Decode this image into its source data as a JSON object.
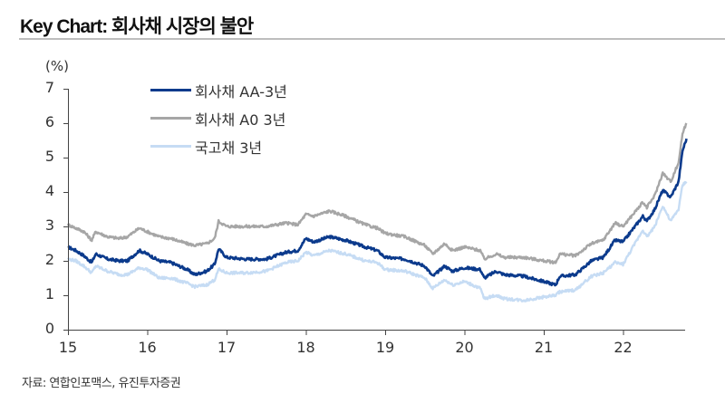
{
  "title": "Key Chart: 회사채 시장의 불안",
  "source": "자료: 연합인포맥스, 유진투자증권",
  "colors": {
    "aa": "#0b3a8c",
    "a0": "#a6a6a6",
    "ktb": "#c6dcf4",
    "axis": "#444444",
    "title_rule": "#bdbdbd"
  },
  "chart_data": {
    "type": "line",
    "title": "Key Chart: 회사채 시장의 불안",
    "xlabel": "",
    "ylabel": "(%)",
    "ylim": [
      0,
      7
    ],
    "xlim": [
      15,
      22.8
    ],
    "grid": false,
    "legend_position": "upper-left",
    "x_ticks": [
      "15",
      "16",
      "17",
      "18",
      "19",
      "20",
      "21",
      "22"
    ],
    "y_ticks": [
      "0",
      "1",
      "2",
      "3",
      "4",
      "5",
      "6",
      "7"
    ],
    "x": [
      15.0,
      15.1,
      15.2,
      15.3,
      15.35,
      15.5,
      15.65,
      15.75,
      15.9,
      16.0,
      16.15,
      16.3,
      16.5,
      16.6,
      16.75,
      16.85,
      16.9,
      17.0,
      17.25,
      17.5,
      17.75,
      17.9,
      18.0,
      18.1,
      18.3,
      18.5,
      18.75,
      18.9,
      19.0,
      19.25,
      19.5,
      19.6,
      19.75,
      19.85,
      20.0,
      20.2,
      20.25,
      20.4,
      20.5,
      20.75,
      21.0,
      21.15,
      21.2,
      21.4,
      21.6,
      21.75,
      21.9,
      22.0,
      22.25,
      22.3,
      22.4,
      22.5,
      22.6,
      22.7,
      22.75,
      22.8
    ],
    "series": [
      {
        "name": "회사채 AA-3년",
        "values": [
          2.4,
          2.3,
          2.15,
          1.95,
          2.2,
          2.05,
          2.0,
          2.0,
          2.3,
          2.2,
          2.0,
          1.95,
          1.75,
          1.6,
          1.7,
          1.9,
          2.35,
          2.1,
          2.05,
          2.05,
          2.25,
          2.3,
          2.65,
          2.55,
          2.7,
          2.6,
          2.4,
          2.3,
          2.1,
          2.05,
          1.85,
          1.55,
          1.85,
          1.7,
          1.8,
          1.75,
          1.5,
          1.7,
          1.6,
          1.55,
          1.4,
          1.3,
          1.55,
          1.6,
          2.0,
          2.1,
          2.6,
          2.55,
          3.3,
          3.15,
          3.5,
          4.05,
          3.85,
          4.3,
          5.2,
          5.55
        ]
      },
      {
        "name": "회사채 A0 3년",
        "values": [
          3.05,
          2.95,
          2.85,
          2.6,
          2.85,
          2.7,
          2.65,
          2.7,
          2.95,
          2.85,
          2.7,
          2.65,
          2.5,
          2.45,
          2.5,
          2.65,
          3.15,
          3.0,
          3.0,
          3.0,
          3.1,
          3.05,
          3.35,
          3.3,
          3.45,
          3.3,
          3.05,
          2.95,
          2.8,
          2.7,
          2.45,
          2.2,
          2.5,
          2.3,
          2.4,
          2.3,
          2.05,
          2.2,
          2.1,
          2.1,
          2.0,
          1.95,
          2.2,
          2.15,
          2.5,
          2.6,
          3.1,
          3.0,
          3.7,
          3.55,
          3.9,
          4.55,
          4.3,
          4.85,
          5.7,
          6.0
        ]
      },
      {
        "name": "국고채 3년",
        "values": [
          2.05,
          2.0,
          1.85,
          1.65,
          1.85,
          1.7,
          1.6,
          1.6,
          1.8,
          1.75,
          1.5,
          1.5,
          1.35,
          1.25,
          1.3,
          1.45,
          1.75,
          1.65,
          1.65,
          1.7,
          1.95,
          2.0,
          2.25,
          2.15,
          2.3,
          2.2,
          2.0,
          1.95,
          1.75,
          1.7,
          1.5,
          1.2,
          1.45,
          1.3,
          1.4,
          1.2,
          0.9,
          1.0,
          0.9,
          0.85,
          0.95,
          1.0,
          1.1,
          1.15,
          1.55,
          1.65,
          1.95,
          1.9,
          2.9,
          2.7,
          3.0,
          3.6,
          3.15,
          3.5,
          4.2,
          4.3
        ]
      }
    ]
  },
  "legend": [
    {
      "label": "회사채 AA-3년",
      "color": "#0b3a8c"
    },
    {
      "label": "회사채 A0 3년",
      "color": "#a6a6a6"
    },
    {
      "label": "국고채 3년",
      "color": "#c6dcf4"
    }
  ]
}
